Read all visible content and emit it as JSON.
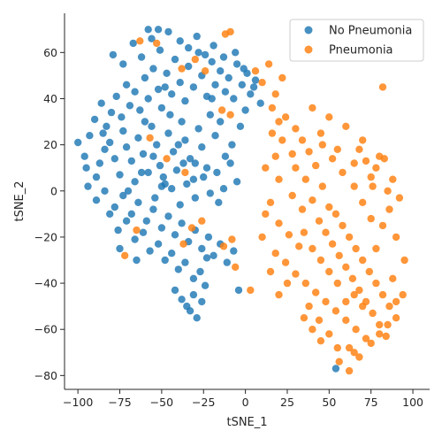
{
  "chart_data": {
    "type": "scatter",
    "xlabel": "tSNE_1",
    "ylabel": "tSNE_2",
    "xlim": [
      -108,
      110
    ],
    "ylim": [
      -86,
      77
    ],
    "xticks": [
      -100,
      -75,
      -50,
      -25,
      0,
      25,
      50,
      75,
      100
    ],
    "yticks": [
      -80,
      -60,
      -40,
      -20,
      0,
      20,
      40,
      60
    ],
    "grid": false,
    "legend_position": "top-right",
    "series": [
      {
        "name": "No Pneumonia",
        "color": "#1f77b4",
        "points": [
          [
            -100,
            21
          ],
          [
            -96,
            15
          ],
          [
            -93,
            24
          ],
          [
            -89,
            6
          ],
          [
            -87,
            12
          ],
          [
            -84,
            18
          ],
          [
            -81,
            21
          ],
          [
            -78,
            14
          ],
          [
            -75,
            7
          ],
          [
            -73,
            26
          ],
          [
            -71,
            19
          ],
          [
            -68,
            13
          ],
          [
            -66,
            4
          ],
          [
            -64,
            23
          ],
          [
            -61,
            16
          ],
          [
            -58,
            8
          ],
          [
            -56,
            28
          ],
          [
            -53,
            20
          ],
          [
            -51,
            11
          ],
          [
            -48,
            3
          ],
          [
            -46,
            25
          ],
          [
            -43,
            17
          ],
          [
            -41,
            9
          ],
          [
            -38,
            30
          ],
          [
            -36,
            22
          ],
          [
            -33,
            14
          ],
          [
            -31,
            5
          ],
          [
            -28,
            27
          ],
          [
            -26,
            19
          ],
          [
            -23,
            10
          ],
          [
            -21,
            33
          ],
          [
            -18,
            24
          ],
          [
            -90,
            31
          ],
          [
            -86,
            38
          ],
          [
            -83,
            28
          ],
          [
            -80,
            34
          ],
          [
            -77,
            41
          ],
          [
            -74,
            32
          ],
          [
            -71,
            46
          ],
          [
            -69,
            37
          ],
          [
            -66,
            43
          ],
          [
            -63,
            35
          ],
          [
            -60,
            49
          ],
          [
            -58,
            40
          ],
          [
            -55,
            53
          ],
          [
            -52,
            44
          ],
          [
            -50,
            36
          ],
          [
            -47,
            51
          ],
          [
            -44,
            42
          ],
          [
            -42,
            57
          ],
          [
            -39,
            47
          ],
          [
            -36,
            39
          ],
          [
            -34,
            54
          ],
          [
            -31,
            45
          ],
          [
            -28,
            60
          ],
          [
            -26,
            50
          ],
          [
            -23,
            41
          ],
          [
            -20,
            56
          ],
          [
            -18,
            46
          ],
          [
            -15,
            52
          ],
          [
            -12,
            43
          ],
          [
            -10,
            49
          ],
          [
            -7,
            40
          ],
          [
            -5,
            55
          ],
          [
            -2,
            46
          ],
          [
            1,
            51
          ],
          [
            3,
            42
          ],
          [
            6,
            48
          ],
          [
            9,
            38
          ],
          [
            -79,
            59
          ],
          [
            -73,
            55
          ],
          [
            -67,
            64
          ],
          [
            -62,
            58
          ],
          [
            -56,
            66
          ],
          [
            -51,
            61
          ],
          [
            -46,
            69
          ],
          [
            -39,
            65
          ],
          [
            -34,
            62
          ],
          [
            -29,
            67
          ],
          [
            -24,
            59
          ],
          [
            -19,
            63
          ],
          [
            -13,
            58
          ],
          [
            -6,
            60
          ],
          [
            -1,
            53
          ],
          [
            -94,
            2
          ],
          [
            -89,
            -4
          ],
          [
            -84,
            0
          ],
          [
            -78,
            -7
          ],
          [
            -73,
            -2
          ],
          [
            -68,
            -10
          ],
          [
            -64,
            -5
          ],
          [
            -59,
            -13
          ],
          [
            -55,
            -8
          ],
          [
            -50,
            -16
          ],
          [
            -46,
            -11
          ],
          [
            -42,
            -19
          ],
          [
            -38,
            -14
          ],
          [
            -34,
            -22
          ],
          [
            -30,
            -17
          ],
          [
            -26,
            -25
          ],
          [
            -22,
            -20
          ],
          [
            -19,
            -28
          ],
          [
            -15,
            -23
          ],
          [
            -11,
            -31
          ],
          [
            -7,
            -26
          ],
          [
            -81,
            -10
          ],
          [
            -76,
            -17
          ],
          [
            -71,
            -13
          ],
          [
            -66,
            -21
          ],
          [
            -61,
            -18
          ],
          [
            -57,
            -26
          ],
          [
            -52,
            -23
          ],
          [
            -48,
            -30
          ],
          [
            -44,
            -27
          ],
          [
            -40,
            -34
          ],
          [
            -36,
            -31
          ],
          [
            -31,
            -38
          ],
          [
            -27,
            -35
          ],
          [
            -23,
            -29
          ],
          [
            -54,
            -3
          ],
          [
            -49,
            6
          ],
          [
            -44,
            1
          ],
          [
            -39,
            -6
          ],
          [
            -35,
            3
          ],
          [
            -30,
            -3
          ],
          [
            -25,
            6
          ],
          [
            -21,
            -1
          ],
          [
            -17,
            8
          ],
          [
            -13,
            1
          ],
          [
            -9,
            12
          ],
          [
            -5,
            4
          ],
          [
            -24,
            -41
          ],
          [
            -31,
            -45
          ],
          [
            -26,
            -48
          ],
          [
            -33,
            -52
          ],
          [
            -29,
            -55
          ],
          [
            -35,
            -50
          ],
          [
            -42,
            -43
          ],
          [
            -38,
            -47
          ],
          [
            -50,
            2
          ],
          [
            -60,
            30
          ],
          [
            -45,
            33
          ],
          [
            -30,
            12
          ],
          [
            -15,
            30
          ],
          [
            -70,
            0
          ],
          [
            -85,
            25
          ],
          [
            -95,
            10
          ],
          [
            -65,
            -30
          ],
          [
            -75,
            -25
          ],
          [
            0,
            35
          ],
          [
            5,
            45
          ],
          [
            -3,
            28
          ],
          [
            -8,
            20
          ],
          [
            -12,
            15
          ],
          [
            -16,
            -5
          ],
          [
            -20,
            40
          ],
          [
            -40,
            20
          ],
          [
            -55,
            15
          ],
          [
            -62,
            8
          ],
          [
            -48,
            45
          ],
          [
            -37,
            12
          ],
          [
            54,
            -77
          ],
          [
            -4,
            -43
          ],
          [
            -52,
            70
          ],
          [
            -58,
            70
          ]
        ]
      },
      {
        "name": "Pneumonia",
        "color": "#ff7f0e",
        "points": [
          [
            82,
            45
          ],
          [
            -53,
            64
          ],
          [
            -63,
            65
          ],
          [
            -38,
            53
          ],
          [
            -30,
            57
          ],
          [
            -24,
            52
          ],
          [
            -14,
            35
          ],
          [
            -9,
            33
          ],
          [
            -57,
            23
          ],
          [
            -47,
            14
          ],
          [
            -36,
            8
          ],
          [
            -65,
            -17
          ],
          [
            -72,
            -28
          ],
          [
            -37,
            -23
          ],
          [
            -32,
            -16
          ],
          [
            -26,
            -13
          ],
          [
            -13,
            -24
          ],
          [
            -8,
            -21
          ],
          [
            -6,
            -33
          ],
          [
            3,
            -43
          ],
          [
            10,
            -20
          ],
          [
            -9,
            69
          ],
          [
            -12,
            68
          ],
          [
            6,
            52
          ],
          [
            10,
            47
          ],
          [
            14,
            55
          ],
          [
            18,
            42
          ],
          [
            22,
            49
          ],
          [
            16,
            36
          ],
          [
            24,
            32
          ],
          [
            30,
            27
          ],
          [
            34,
            22
          ],
          [
            28,
            16
          ],
          [
            38,
            17
          ],
          [
            42,
            11
          ],
          [
            36,
            5
          ],
          [
            46,
            2
          ],
          [
            40,
            -4
          ],
          [
            50,
            -7
          ],
          [
            44,
            -13
          ],
          [
            54,
            -10
          ],
          [
            48,
            -18
          ],
          [
            58,
            -15
          ],
          [
            52,
            -23
          ],
          [
            62,
            -20
          ],
          [
            56,
            -28
          ],
          [
            66,
            -25
          ],
          [
            60,
            -33
          ],
          [
            70,
            -30
          ],
          [
            64,
            -38
          ],
          [
            74,
            -35
          ],
          [
            68,
            -43
          ],
          [
            78,
            -40
          ],
          [
            72,
            -48
          ],
          [
            82,
            -45
          ],
          [
            76,
            -53
          ],
          [
            86,
            -50
          ],
          [
            80,
            -58
          ],
          [
            90,
            -55
          ],
          [
            84,
            -63
          ],
          [
            20,
            -14
          ],
          [
            26,
            -19
          ],
          [
            32,
            -24
          ],
          [
            18,
            -27
          ],
          [
            24,
            -31
          ],
          [
            30,
            -36
          ],
          [
            36,
            -40
          ],
          [
            42,
            -44
          ],
          [
            48,
            -48
          ],
          [
            54,
            -52
          ],
          [
            60,
            -56
          ],
          [
            66,
            -60
          ],
          [
            72,
            -64
          ],
          [
            62,
            -68
          ],
          [
            68,
            -72
          ],
          [
            56,
            -74
          ],
          [
            62,
            -78
          ],
          [
            50,
            -62
          ],
          [
            44,
            -56
          ],
          [
            38,
            -50
          ],
          [
            15,
            -5
          ],
          [
            20,
            5
          ],
          [
            28,
            -2
          ],
          [
            34,
            -8
          ],
          [
            12,
            10
          ],
          [
            45,
            25
          ],
          [
            55,
            18
          ],
          [
            65,
            12
          ],
          [
            75,
            6
          ],
          [
            85,
            0
          ],
          [
            92,
            -3
          ],
          [
            88,
            5
          ],
          [
            80,
            15
          ],
          [
            70,
            22
          ],
          [
            60,
            28
          ],
          [
            50,
            32
          ],
          [
            40,
            36
          ],
          [
            90,
            -20
          ],
          [
            95,
            -30
          ],
          [
            88,
            -38
          ],
          [
            94,
            -45
          ],
          [
            75,
            -12
          ],
          [
            70,
            -5
          ],
          [
            65,
            2
          ],
          [
            58,
            8
          ],
          [
            52,
            14
          ],
          [
            46,
            20
          ],
          [
            22,
            22
          ],
          [
            18,
            15
          ],
          [
            30,
            10
          ],
          [
            25,
            -40
          ],
          [
            20,
            -45
          ],
          [
            15,
            -35
          ],
          [
            35,
            -55
          ],
          [
            40,
            -60
          ],
          [
            45,
            -65
          ],
          [
            55,
            -68
          ],
          [
            65,
            -70
          ],
          [
            75,
            -66
          ],
          [
            80,
            -62
          ],
          [
            85,
            -58
          ],
          [
            90,
            -48
          ],
          [
            78,
            -25
          ],
          [
            82,
            -15
          ],
          [
            86,
            -8
          ],
          [
            76,
            2
          ],
          [
            68,
            18
          ],
          [
            45,
            -30
          ],
          [
            40,
            -25
          ],
          [
            35,
            -18
          ],
          [
            55,
            -40
          ],
          [
            50,
            -35
          ],
          [
            65,
            -45
          ],
          [
            70,
            -50
          ],
          [
            60,
            -48
          ],
          [
            83,
            14
          ],
          [
            78,
            10
          ],
          [
            72,
            13
          ],
          [
            16,
            25
          ],
          [
            20,
            30
          ],
          [
            12,
            -10
          ]
        ]
      }
    ]
  }
}
